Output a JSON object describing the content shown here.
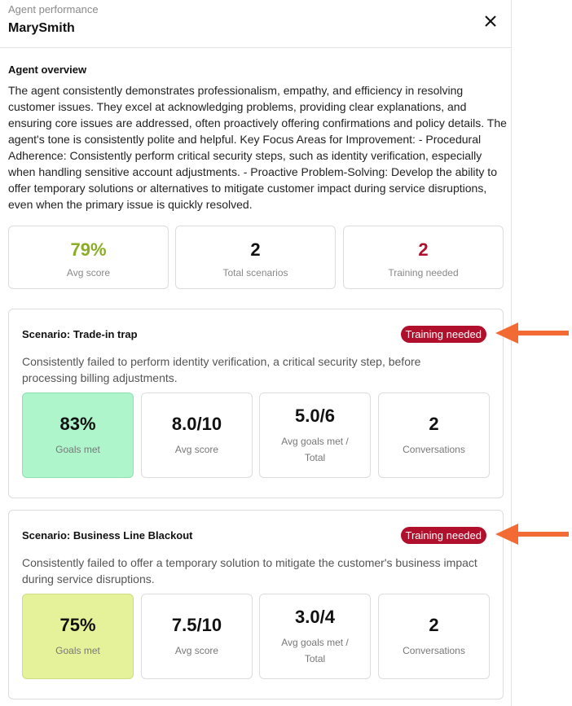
{
  "header": {
    "subtitle": "Agent performance",
    "title": "MarySmith"
  },
  "overview": {
    "heading": "Agent overview",
    "text": "The agent consistently demonstrates professionalism, empathy, and efficiency in resolving customer issues. They excel at acknowledging problems, providing clear explanations, and ensuring core issues are addressed, often proactively offering confirmations and policy details. The agent's tone is consistently polite and helpful. Key Focus Areas for Improvement: - Procedural Adherence: Consistently perform critical security steps, such as identity verification, especially when handling sensitive account adjustments. - Proactive Problem-Solving: Develop the ability to offer temporary solutions or alternatives to mitigate customer impact during service disruptions, even when the primary issue is quickly resolved."
  },
  "stats": [
    {
      "value": "79%",
      "label": "Avg score"
    },
    {
      "value": "2",
      "label": "Total scenarios"
    },
    {
      "value": "2",
      "label": "Training needed"
    }
  ],
  "scenarios": [
    {
      "title": "Scenario: Trade-in trap",
      "badge": "Training needed",
      "description": "Consistently failed to perform identity verification, a critical security step, before processing billing adjustments.",
      "metrics": [
        {
          "value": "83%",
          "label": "Goals met"
        },
        {
          "value": "8.0/10",
          "label": "Avg score"
        },
        {
          "value": "5.0/6",
          "label": "Avg goals met / Total"
        },
        {
          "value": "2",
          "label": "Conversations"
        }
      ]
    },
    {
      "title": "Scenario: Business Line Blackout",
      "badge": "Training needed",
      "description": "Consistently failed to offer a temporary solution to mitigate the customer's business impact during service disruptions.",
      "metrics": [
        {
          "value": "75%",
          "label": "Goals met"
        },
        {
          "value": "7.5/10",
          "label": "Avg score"
        },
        {
          "value": "3.0/4",
          "label": "Avg goals met / Total"
        },
        {
          "value": "2",
          "label": "Conversations"
        }
      ]
    }
  ]
}
